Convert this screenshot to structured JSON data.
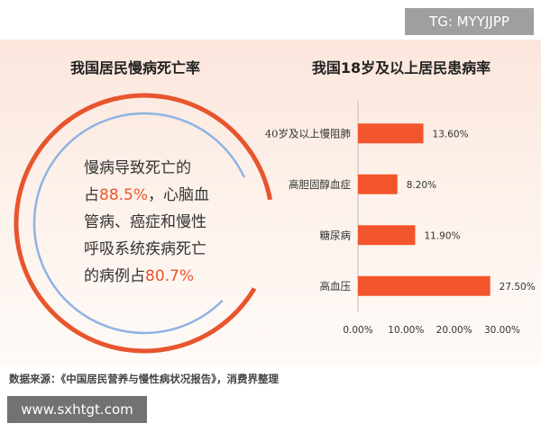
{
  "watermark_top": "TG: MYYJJPP",
  "watermark_bottom": "www.sxhtgt.com",
  "left_panel": {
    "title": "我国居民慢病死亡率",
    "text": {
      "line1": "慢病导致死亡的",
      "line2_pre": "占",
      "line2_value": "88.5%",
      "line2_post": "，心脑血",
      "line3": "管病、癌症和慢性",
      "line4": "呼吸系统疾病死亡",
      "line5_pre": "的病例占",
      "line5_value": "80.7%"
    },
    "outer_ring_percent": 88.5,
    "inner_ring_percent": 80.7,
    "colors": {
      "outer": "#e8552d",
      "inner": "#8fb3e3"
    }
  },
  "source": "数据来源：《中国居民营养与慢性病状况报告》，消费界整理",
  "chart_data": {
    "type": "bar",
    "orientation": "horizontal",
    "title": "我国18岁及以上居民患病率",
    "categories": [
      "40岁及以上慢阻肺",
      "高胆固醇血症",
      "糖尿病",
      "高血压"
    ],
    "values": [
      13.6,
      8.2,
      11.9,
      27.5
    ],
    "value_labels": [
      "13.60%",
      "8.20%",
      "11.90%",
      "27.50%"
    ],
    "x_ticks": [
      "0.00%",
      "10.00%",
      "20.00%",
      "30.00%"
    ],
    "xlim": [
      0,
      30
    ],
    "bar_color": "#f2552c"
  }
}
